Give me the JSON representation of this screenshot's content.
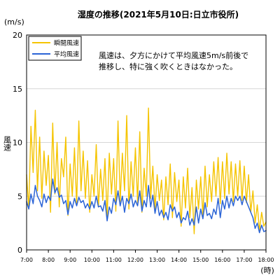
{
  "chart_data": {
    "type": "line",
    "title": "湿度の推移(2021年5月10日:日立市役所)",
    "ylabel": "風速",
    "yunit": "(m/s)",
    "xlabel_unit": "(時)",
    "ylim": [
      0,
      20
    ],
    "y_ticks": [
      0,
      5,
      10,
      15,
      20
    ],
    "xlim": [
      7,
      18
    ],
    "x_ticks": [
      7,
      8,
      9,
      10,
      11,
      12,
      13,
      14,
      15,
      16,
      17,
      18
    ],
    "x_tick_labels": [
      "7:00",
      "8:00",
      "9:00",
      "10:00",
      "11:00",
      "12:00",
      "13:00",
      "14:00",
      "15:00",
      "16:00",
      "17:00",
      "18:00"
    ],
    "grid": true,
    "legend_position": "top-left",
    "annotation": "風速は、夕方にかけて平均風速5m/s前後で\n推移し、特に強く吹くときはなかった。",
    "series": [
      {
        "name": "瞬間風速",
        "color": "#f5c400",
        "x": [
          7.0,
          7.1,
          7.2,
          7.3,
          7.4,
          7.5,
          7.6,
          7.7,
          7.8,
          7.9,
          8.0,
          8.1,
          8.2,
          8.3,
          8.4,
          8.5,
          8.6,
          8.7,
          8.8,
          8.9,
          9.0,
          9.1,
          9.2,
          9.3,
          9.4,
          9.5,
          9.6,
          9.7,
          9.8,
          9.9,
          10.0,
          10.1,
          10.2,
          10.3,
          10.4,
          10.5,
          10.6,
          10.7,
          10.8,
          10.9,
          11.0,
          11.1,
          11.2,
          11.3,
          11.4,
          11.5,
          11.6,
          11.7,
          11.8,
          11.9,
          12.0,
          12.1,
          12.2,
          12.3,
          12.4,
          12.5,
          12.6,
          12.7,
          12.8,
          12.9,
          13.0,
          13.1,
          13.2,
          13.3,
          13.4,
          13.5,
          13.6,
          13.7,
          13.8,
          13.9,
          14.0,
          14.1,
          14.2,
          14.3,
          14.4,
          14.5,
          14.6,
          14.7,
          14.8,
          14.9,
          15.0,
          15.1,
          15.2,
          15.3,
          15.4,
          15.5,
          15.6,
          15.7,
          15.8,
          15.9,
          16.0,
          16.1,
          16.2,
          16.3,
          16.4,
          16.5,
          16.6,
          16.7,
          16.8,
          16.9,
          17.0,
          17.1,
          17.2,
          17.3,
          17.4,
          17.5,
          17.6,
          17.7,
          17.8,
          17.9,
          18.0
        ],
        "values": [
          7.0,
          3.8,
          11.5,
          7.2,
          13.0,
          5.5,
          10.5,
          4.8,
          9.2,
          6.0,
          8.8,
          3.5,
          11.8,
          5.2,
          10.0,
          4.0,
          8.5,
          6.8,
          10.5,
          3.2,
          8.0,
          5.0,
          9.5,
          4.2,
          12.0,
          5.5,
          9.2,
          4.8,
          8.3,
          3.5,
          7.0,
          5.0,
          9.8,
          4.0,
          7.5,
          4.6,
          8.5,
          3.0,
          9.0,
          5.2,
          8.5,
          3.6,
          12.0,
          4.5,
          9.0,
          5.5,
          12.5,
          3.8,
          8.2,
          5.0,
          9.5,
          4.4,
          11.0,
          3.5,
          7.6,
          5.0,
          13.2,
          4.8,
          7.8,
          3.8,
          7.0,
          4.6,
          6.5,
          2.8,
          6.8,
          4.2,
          8.0,
          3.0,
          7.2,
          4.5,
          6.5,
          2.2,
          6.8,
          3.9,
          7.6,
          3.0,
          5.8,
          1.5,
          6.5,
          3.8,
          6.8,
          3.2,
          7.8,
          4.0,
          7.0,
          4.5,
          8.2,
          5.0,
          8.6,
          4.3,
          8.2,
          4.8,
          9.0,
          5.2,
          8.2,
          4.5,
          8.0,
          5.0,
          8.3,
          4.6,
          7.8,
          4.4,
          7.0,
          3.5,
          5.5,
          2.5,
          4.2,
          1.8,
          3.5,
          2.2,
          2.6
        ]
      },
      {
        "name": "平均風速",
        "color": "#2b64d6",
        "x": [
          7.0,
          7.1,
          7.2,
          7.3,
          7.4,
          7.5,
          7.6,
          7.7,
          7.8,
          7.9,
          8.0,
          8.1,
          8.2,
          8.3,
          8.4,
          8.5,
          8.6,
          8.7,
          8.8,
          8.9,
          9.0,
          9.1,
          9.2,
          9.3,
          9.4,
          9.5,
          9.6,
          9.7,
          9.8,
          9.9,
          10.0,
          10.1,
          10.2,
          10.3,
          10.4,
          10.5,
          10.6,
          10.7,
          10.8,
          10.9,
          11.0,
          11.1,
          11.2,
          11.3,
          11.4,
          11.5,
          11.6,
          11.7,
          11.8,
          11.9,
          12.0,
          12.1,
          12.2,
          12.3,
          12.4,
          12.5,
          12.6,
          12.7,
          12.8,
          12.9,
          13.0,
          13.1,
          13.2,
          13.3,
          13.4,
          13.5,
          13.6,
          13.7,
          13.8,
          13.9,
          14.0,
          14.1,
          14.2,
          14.3,
          14.4,
          14.5,
          14.6,
          14.7,
          14.8,
          14.9,
          15.0,
          15.1,
          15.2,
          15.3,
          15.4,
          15.5,
          15.6,
          15.7,
          15.8,
          15.9,
          16.0,
          16.1,
          16.2,
          16.3,
          16.4,
          16.5,
          16.6,
          16.7,
          16.8,
          16.9,
          17.0,
          17.1,
          17.2,
          17.3,
          17.4,
          17.5,
          17.6,
          17.7,
          17.8,
          17.9,
          18.0
        ],
        "values": [
          4.5,
          3.8,
          5.2,
          4.3,
          6.0,
          5.0,
          4.6,
          4.0,
          5.2,
          4.4,
          5.0,
          4.6,
          6.6,
          5.3,
          5.8,
          4.9,
          5.1,
          4.3,
          4.6,
          3.3,
          4.5,
          3.9,
          4.8,
          4.1,
          4.9,
          4.4,
          4.6,
          3.9,
          4.3,
          3.8,
          4.5,
          3.9,
          5.0,
          4.0,
          4.1,
          3.6,
          4.6,
          2.7,
          4.0,
          3.4,
          4.8,
          4.2,
          5.5,
          4.1,
          5.0,
          3.5,
          4.8,
          4.3,
          5.2,
          4.0,
          4.6,
          4.1,
          5.5,
          3.6,
          4.6,
          4.0,
          6.0,
          4.0,
          5.1,
          3.4,
          4.5,
          3.2,
          3.7,
          3.0,
          3.5,
          2.8,
          4.2,
          3.6,
          4.0,
          3.0,
          3.5,
          2.5,
          3.0,
          2.8,
          3.6,
          2.3,
          2.9,
          2.3,
          4.0,
          2.5,
          3.8,
          2.9,
          4.4,
          3.2,
          3.4,
          2.9,
          3.8,
          3.3,
          4.8,
          3.0,
          4.6,
          3.8,
          5.0,
          3.9,
          4.8,
          4.1,
          5.0,
          4.6,
          5.0,
          4.2,
          5.0,
          4.5,
          4.0,
          3.5,
          3.0,
          2.0,
          2.5,
          1.6,
          2.3,
          1.7,
          1.8
        ]
      }
    ]
  }
}
